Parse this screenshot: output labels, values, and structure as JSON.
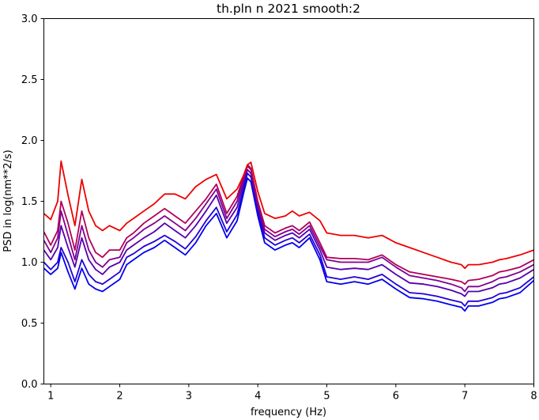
{
  "chart_data": {
    "type": "line",
    "title": "th.pln n 2021 smooth:2",
    "xlabel": "frequency (Hz)",
    "ylabel": "PSD in log(nm**2/s)",
    "xlim": [
      0.9,
      8.0
    ],
    "ylim": [
      0.0,
      3.0
    ],
    "x_ticks": [
      "1",
      "2",
      "3",
      "4",
      "5",
      "6",
      "7",
      "8"
    ],
    "y_ticks": [
      "0.0",
      "0.5",
      "1.0",
      "1.5",
      "2.0",
      "2.5",
      "3.0"
    ],
    "grid": false,
    "legend": "none",
    "colors": [
      "#0000ee",
      "#2200d8",
      "#5500b0",
      "#800090",
      "#b00058",
      "#ee0000"
    ],
    "x": [
      0.9,
      1.0,
      1.1,
      1.15,
      1.25,
      1.35,
      1.45,
      1.55,
      1.65,
      1.75,
      1.85,
      2.0,
      2.1,
      2.2,
      2.35,
      2.5,
      2.65,
      2.8,
      2.95,
      3.1,
      3.25,
      3.4,
      3.55,
      3.7,
      3.8,
      3.85,
      3.9,
      4.0,
      4.1,
      4.25,
      4.4,
      4.5,
      4.6,
      4.75,
      4.9,
      5.0,
      5.2,
      5.4,
      5.6,
      5.8,
      6.0,
      6.2,
      6.4,
      6.6,
      6.8,
      6.95,
      7.0,
      7.05,
      7.2,
      7.4,
      7.5,
      7.6,
      7.8,
      8.0
    ],
    "series": [
      {
        "values": [
          0.95,
          0.9,
          0.95,
          1.08,
          0.92,
          0.78,
          0.95,
          0.82,
          0.78,
          0.76,
          0.8,
          0.86,
          0.98,
          1.02,
          1.08,
          1.12,
          1.18,
          1.12,
          1.06,
          1.16,
          1.3,
          1.4,
          1.2,
          1.34,
          1.58,
          1.69,
          1.66,
          1.38,
          1.16,
          1.1,
          1.14,
          1.16,
          1.12,
          1.2,
          1.02,
          0.84,
          0.82,
          0.84,
          0.82,
          0.86,
          0.78,
          0.71,
          0.7,
          0.68,
          0.65,
          0.63,
          0.6,
          0.64,
          0.64,
          0.67,
          0.7,
          0.71,
          0.75,
          0.85
        ]
      },
      {
        "values": [
          1.0,
          0.94,
          1.0,
          1.12,
          1.0,
          0.84,
          1.02,
          0.9,
          0.84,
          0.82,
          0.86,
          0.92,
          1.04,
          1.07,
          1.13,
          1.17,
          1.22,
          1.17,
          1.11,
          1.21,
          1.34,
          1.45,
          1.25,
          1.39,
          1.62,
          1.73,
          1.7,
          1.42,
          1.2,
          1.14,
          1.18,
          1.2,
          1.16,
          1.23,
          1.06,
          0.88,
          0.86,
          0.88,
          0.86,
          0.9,
          0.82,
          0.75,
          0.74,
          0.72,
          0.69,
          0.67,
          0.64,
          0.68,
          0.68,
          0.71,
          0.74,
          0.75,
          0.79,
          0.88
        ]
      },
      {
        "values": [
          1.1,
          1.02,
          1.12,
          1.3,
          1.12,
          0.96,
          1.2,
          1.02,
          0.94,
          0.9,
          0.96,
          1.0,
          1.1,
          1.14,
          1.2,
          1.25,
          1.32,
          1.26,
          1.2,
          1.3,
          1.42,
          1.55,
          1.32,
          1.45,
          1.66,
          1.76,
          1.73,
          1.45,
          1.24,
          1.18,
          1.22,
          1.24,
          1.2,
          1.27,
          1.1,
          0.96,
          0.94,
          0.95,
          0.94,
          0.98,
          0.9,
          0.83,
          0.82,
          0.8,
          0.77,
          0.74,
          0.72,
          0.76,
          0.76,
          0.79,
          0.82,
          0.83,
          0.87,
          0.94
        ]
      },
      {
        "values": [
          1.18,
          1.08,
          1.2,
          1.42,
          1.22,
          1.02,
          1.3,
          1.1,
          1.0,
          0.96,
          1.02,
          1.04,
          1.16,
          1.2,
          1.27,
          1.32,
          1.38,
          1.32,
          1.26,
          1.36,
          1.48,
          1.6,
          1.36,
          1.5,
          1.7,
          1.79,
          1.76,
          1.48,
          1.27,
          1.21,
          1.25,
          1.27,
          1.23,
          1.3,
          1.13,
          1.02,
          1.0,
          1.0,
          1.0,
          1.04,
          0.96,
          0.89,
          0.87,
          0.85,
          0.82,
          0.79,
          0.76,
          0.8,
          0.8,
          0.84,
          0.87,
          0.88,
          0.92,
          0.98
        ]
      },
      {
        "values": [
          1.25,
          1.14,
          1.26,
          1.5,
          1.32,
          1.1,
          1.42,
          1.2,
          1.08,
          1.04,
          1.1,
          1.1,
          1.2,
          1.24,
          1.32,
          1.38,
          1.44,
          1.38,
          1.32,
          1.42,
          1.52,
          1.64,
          1.4,
          1.54,
          1.72,
          1.8,
          1.77,
          1.5,
          1.3,
          1.24,
          1.28,
          1.3,
          1.26,
          1.33,
          1.16,
          1.04,
          1.03,
          1.03,
          1.02,
          1.06,
          0.98,
          0.92,
          0.9,
          0.88,
          0.86,
          0.84,
          0.82,
          0.85,
          0.86,
          0.89,
          0.92,
          0.93,
          0.96,
          1.02
        ]
      },
      {
        "values": [
          1.4,
          1.35,
          1.5,
          1.83,
          1.55,
          1.3,
          1.68,
          1.42,
          1.3,
          1.26,
          1.3,
          1.26,
          1.32,
          1.36,
          1.42,
          1.48,
          1.56,
          1.56,
          1.52,
          1.62,
          1.68,
          1.72,
          1.52,
          1.6,
          1.72,
          1.8,
          1.82,
          1.58,
          1.4,
          1.36,
          1.38,
          1.42,
          1.38,
          1.41,
          1.34,
          1.24,
          1.22,
          1.22,
          1.2,
          1.22,
          1.16,
          1.12,
          1.08,
          1.04,
          1.0,
          0.98,
          0.95,
          0.98,
          0.98,
          1.0,
          1.02,
          1.03,
          1.06,
          1.1
        ]
      }
    ]
  }
}
